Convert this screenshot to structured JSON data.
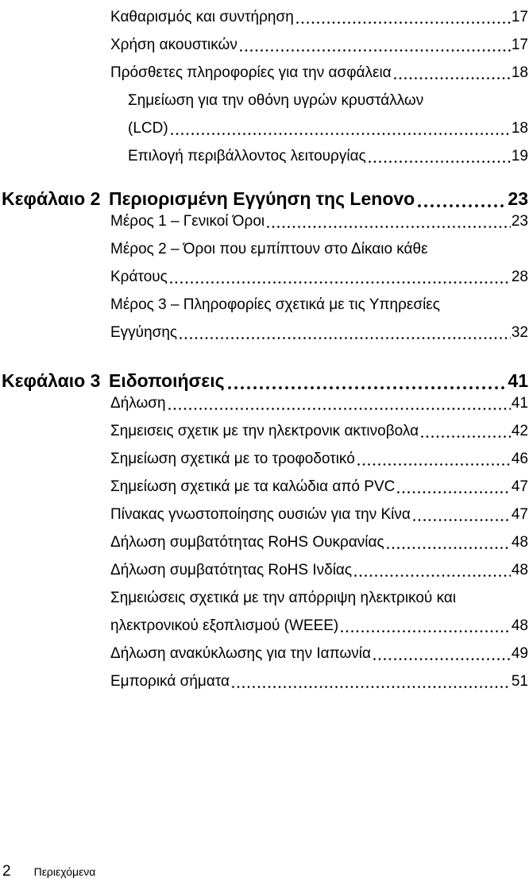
{
  "document": {
    "footer": {
      "page_number": "2",
      "label": "Περιεχόμενα"
    },
    "colors": {
      "text": "#000000",
      "background": "#ffffff"
    },
    "toc": {
      "continued_entries": [
        {
          "text": "Καθαρισμός και συντήρηση",
          "page": "17",
          "level": 1
        },
        {
          "text": "Χρήση ακουστικών",
          "page": "17",
          "level": 1
        },
        {
          "text": "Πρόσθετες πληροφορίες για την ασφάλεια",
          "page": "18",
          "level": 1
        },
        {
          "line1": "Σημείωση για την οθόνη υγρών κρυστάλλων",
          "line2": "(LCD)",
          "page": "18",
          "level": 2
        },
        {
          "text": "Επιλογή περιβάλλοντος λειτουργίας",
          "page": "19",
          "level": 2
        }
      ],
      "chapters": [
        {
          "label": "Κεφάλαιο 2",
          "title": "Περιορισμένη Εγγύηση της Lenovo",
          "page": "23",
          "entries": [
            {
              "text": "Μέρος 1 – Γενικοί Όροι",
              "page": "23"
            },
            {
              "line1": "Μέρος 2 – Όροι που εμπίπτουν στο Δίκαιο κάθε",
              "line2": "Κράτους",
              "page": "28"
            },
            {
              "line1": "Μέρος 3 – Πληροφορίες σχετικά με τις Υπηρεσίες",
              "line2": "Εγγύησης",
              "page": "32"
            }
          ]
        },
        {
          "label": "Κεφάλαιο 3",
          "title": "Ειδοποιήσεις",
          "page": "41",
          "entries": [
            {
              "text": "Δήλωση",
              "page": "41"
            },
            {
              "text": "Σημεισεις σχετικ με την ηλεκτρονικ ακτινοβολα",
              "page": "42"
            },
            {
              "text": "Σημείωση σχετικά με το τροφοδοτικό",
              "page": "46"
            },
            {
              "text": "Σημείωση σχετικά με τα καλώδια από PVC",
              "page": "47"
            },
            {
              "text": "Πίνακας γνωστοποίησης ουσιών για την Κίνα",
              "page": "47"
            },
            {
              "text": "Δήλωση συμβατότητας RoHS Ουκρανίας",
              "page": "48"
            },
            {
              "text": "Δήλωση συμβατότητας RoHS Ινδίας",
              "page": "48"
            },
            {
              "line1": "Σημειώσεις σχετικά με την απόρριψη ηλεκτρικού και",
              "line2": "ηλεκτρονικού εξοπλισμού (WEEE)",
              "page": "48"
            },
            {
              "text": "Δήλωση ανακύκλωσης για την Ιαπωνία",
              "page": "49"
            },
            {
              "text": "Εμπορικά σήματα",
              "page": "51"
            }
          ]
        }
      ]
    }
  }
}
